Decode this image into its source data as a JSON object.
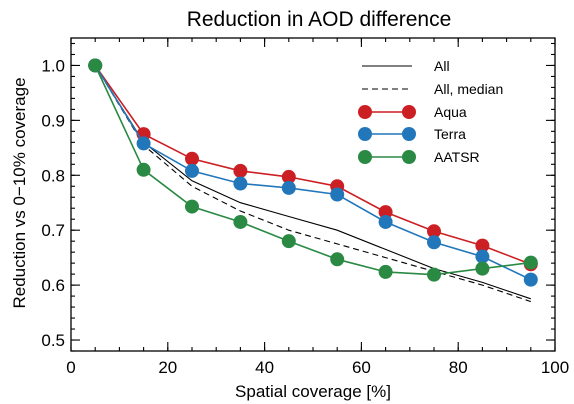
{
  "chart_data": {
    "type": "line",
    "title": "Reduction in AOD difference",
    "xlabel": "Spatial coverage [%]",
    "ylabel": "Reduction vs 0−10% coverage",
    "xlim": [
      0,
      100
    ],
    "ylim": [
      0.48,
      1.05
    ],
    "xticks": [
      0,
      20,
      40,
      60,
      80,
      100
    ],
    "xtick_labels": [
      "0",
      "20",
      "40",
      "60",
      "80",
      "100"
    ],
    "yticks": [
      0.5,
      0.6,
      0.7,
      0.8,
      0.9,
      1.0
    ],
    "ytick_labels": [
      "0.5",
      "0.6",
      "0.7",
      "0.8",
      "0.9",
      "1.0"
    ],
    "x_minor_step": 5,
    "y_minor_step": 0.02,
    "grid": false,
    "legend_position": "top-right",
    "x": [
      5,
      15,
      25,
      35,
      45,
      55,
      65,
      75,
      85,
      95
    ],
    "series": [
      {
        "name": "All",
        "style": "solid-line",
        "color": "#000000",
        "values": [
          1.0,
          0.86,
          0.79,
          0.75,
          0.725,
          0.7,
          0.665,
          0.63,
          0.605,
          0.575
        ]
      },
      {
        "name": "All, median",
        "style": "dashed-line",
        "color": "#000000",
        "values": [
          1.0,
          0.855,
          0.78,
          0.735,
          0.7,
          0.675,
          0.65,
          0.625,
          0.6,
          0.57
        ]
      },
      {
        "name": "Aqua",
        "style": "line-markers",
        "color": "#cc1f24",
        "values": [
          1.0,
          0.875,
          0.83,
          0.808,
          0.797,
          0.78,
          0.733,
          0.698,
          0.672,
          0.638
        ]
      },
      {
        "name": "Terra",
        "style": "line-markers",
        "color": "#2277bb",
        "values": [
          1.0,
          0.858,
          0.808,
          0.785,
          0.777,
          0.765,
          0.715,
          0.678,
          0.652,
          0.61
        ]
      },
      {
        "name": "AATSR",
        "style": "line-markers",
        "color": "#2a8a44",
        "values": [
          1.0,
          0.81,
          0.743,
          0.715,
          0.68,
          0.647,
          0.624,
          0.619,
          0.63,
          0.641
        ]
      }
    ]
  }
}
